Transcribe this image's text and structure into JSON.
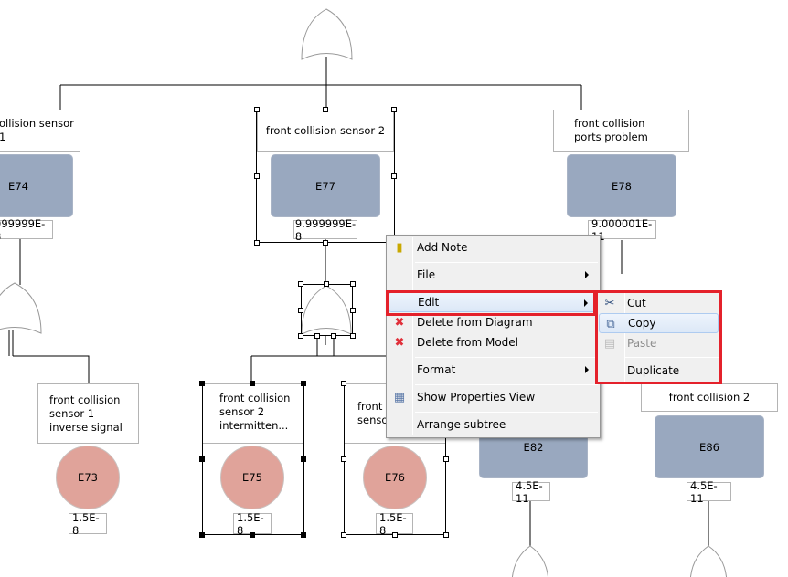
{
  "diagram": {
    "nodes": [
      {
        "id": "E74",
        "label": "ollision sensor 1",
        "probability": "999999E-8",
        "kind": "intermediate"
      },
      {
        "id": "E77",
        "label": "front collision sensor 2",
        "probability": "9.999999E-8",
        "kind": "intermediate",
        "selected": true
      },
      {
        "id": "E78",
        "label": "front collision ports problem",
        "probability": "9.000001E-11",
        "kind": "intermediate"
      },
      {
        "id": "E73",
        "label": "front collision sensor 1 inverse signal",
        "probability": "1.5E-8",
        "kind": "basic"
      },
      {
        "id": "E75",
        "label": "front collision sensor 2 intermitten...",
        "probability": "1.5E-8",
        "kind": "basic",
        "selected": true
      },
      {
        "id": "E76",
        "label": "front collision sensor 2 signal",
        "label_visible": "front c\nsenso\nsignal",
        "probability": "1.5E-8",
        "kind": "basic",
        "selected": true
      },
      {
        "id": "E82",
        "label": "",
        "probability": "4.5E-11",
        "kind": "intermediate"
      },
      {
        "id": "E86",
        "label": "front collision 2",
        "probability": "4.5E-11",
        "kind": "intermediate"
      }
    ],
    "colors": {
      "intermediate": "#99a8bf",
      "basic": "#e0a39a",
      "highlight": "#e4212b"
    }
  },
  "context_menu": {
    "items": [
      {
        "label": "Add Note",
        "icon": "note-icon"
      },
      {
        "label": "File",
        "submenu": true
      },
      {
        "label": "Edit",
        "submenu": true,
        "highlighted": true
      },
      {
        "label": "Delete from Diagram",
        "icon": "red-x-icon"
      },
      {
        "label": "Delete from Model",
        "icon": "red-x-icon"
      },
      {
        "label": "Format",
        "submenu": true
      },
      {
        "label": "Show Properties View",
        "icon": "properties-table-icon"
      },
      {
        "label": "Arrange subtree"
      }
    ]
  },
  "edit_submenu": {
    "items": [
      {
        "label": "Cut",
        "icon": "scissors-icon"
      },
      {
        "label": "Copy",
        "icon": "copy-icon",
        "hovered": true
      },
      {
        "label": "Paste",
        "icon": "paste-icon",
        "disabled": true
      },
      {
        "label": "Duplicate"
      }
    ]
  }
}
